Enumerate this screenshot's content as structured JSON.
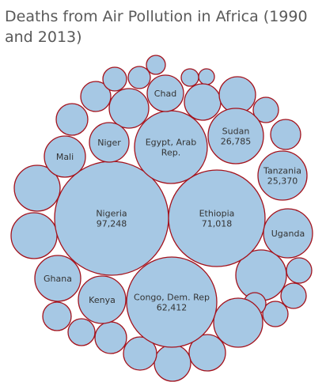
{
  "chart_data": {
    "type": "bubble",
    "title": "Deaths from Air Pollution in Africa (1990 and 2013)",
    "colors": {
      "fill": "#a6c8e4",
      "stroke": "#a4121c",
      "text": "#333333"
    },
    "labeled_bubbles": [
      {
        "name": "Nigeria",
        "value": "97,248"
      },
      {
        "name": "Ethiopia",
        "value": "71,018"
      },
      {
        "name": "Congo, Dem. Rep",
        "value": "62,412"
      },
      {
        "name": "Egypt, Arab Rep.",
        "value": ""
      },
      {
        "name": "Sudan",
        "value": "26,785"
      },
      {
        "name": "Tanzania",
        "value": "25,370"
      },
      {
        "name": "Uganda",
        "value": ""
      },
      {
        "name": "Kenya",
        "value": ""
      },
      {
        "name": "Ghana",
        "value": ""
      },
      {
        "name": "Niger",
        "value": ""
      },
      {
        "name": "Mali",
        "value": ""
      },
      {
        "name": "Chad",
        "value": ""
      }
    ],
    "unlabeled_bubble_count": 30
  }
}
